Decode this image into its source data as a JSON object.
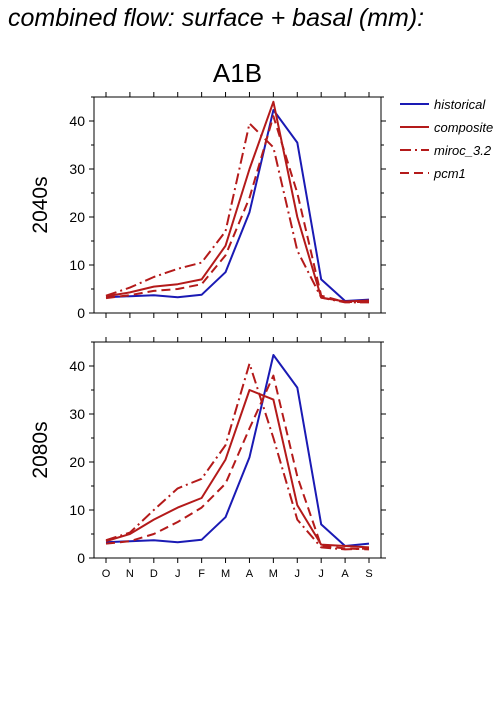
{
  "main_title": "combined flow: surface + basal (mm):",
  "chart_data": [
    {
      "type": "line",
      "title": "A1B",
      "ylabel": "2040s",
      "x": [
        "O",
        "N",
        "D",
        "J",
        "F",
        "M",
        "A",
        "M",
        "J",
        "J",
        "A",
        "S"
      ],
      "ylim": [
        0,
        45
      ],
      "yticks": [
        0,
        10,
        20,
        30,
        40
      ],
      "series": [
        {
          "name": "historical",
          "color": "#1a1ab4",
          "dash": "solid",
          "values": [
            3.3,
            3.5,
            3.7,
            3.3,
            3.8,
            8.5,
            21,
            42.3,
            35.5,
            7,
            2.5,
            2.8
          ]
        },
        {
          "name": "composite",
          "color": "#b41a1a",
          "dash": "solid",
          "values": [
            3.5,
            4.3,
            5.5,
            6,
            7,
            14,
            30,
            44,
            20,
            3.2,
            2.4,
            2.6
          ]
        },
        {
          "name": "miroc_3.2",
          "color": "#b41a1a",
          "dash": "dashdot",
          "values": [
            3.6,
            5.3,
            7.5,
            9.2,
            10.5,
            17,
            39.5,
            34.5,
            13,
            3.2,
            2.2,
            2.2
          ]
        },
        {
          "name": "pcm1",
          "color": "#b41a1a",
          "dash": "dash",
          "values": [
            3.1,
            3.7,
            4.6,
            5,
            6,
            12,
            24,
            41,
            25,
            3.6,
            2.3,
            2.3
          ]
        }
      ]
    },
    {
      "type": "line",
      "ylabel": "2080s",
      "x": [
        "O",
        "N",
        "D",
        "J",
        "F",
        "M",
        "A",
        "M",
        "J",
        "J",
        "A",
        "S"
      ],
      "ylim": [
        0,
        45
      ],
      "yticks": [
        0,
        10,
        20,
        30,
        40
      ],
      "series": [
        {
          "name": "historical",
          "color": "#1a1ab4",
          "dash": "solid",
          "values": [
            3.3,
            3.5,
            3.7,
            3.3,
            3.8,
            8.5,
            21,
            42.3,
            35.5,
            7,
            2.5,
            3
          ]
        },
        {
          "name": "composite",
          "color": "#b41a1a",
          "dash": "solid",
          "values": [
            3.5,
            5,
            8,
            10.5,
            12.5,
            20.5,
            35,
            33,
            11,
            2.8,
            2.5,
            2.2
          ]
        },
        {
          "name": "miroc_3.2",
          "color": "#b41a1a",
          "dash": "dashdot",
          "values": [
            3.7,
            5.3,
            10,
            14.5,
            16.5,
            23.5,
            40.5,
            25,
            8,
            2.2,
            1.8,
            2
          ]
        },
        {
          "name": "pcm1",
          "color": "#b41a1a",
          "dash": "dash",
          "values": [
            3,
            3.5,
            5,
            7.5,
            10.5,
            15.5,
            27,
            38,
            17,
            2.5,
            2,
            1.8
          ]
        }
      ]
    }
  ],
  "legend": {
    "placement": "top-right",
    "items": [
      {
        "label": "historical",
        "color": "#1a1ab4",
        "dash": "solid"
      },
      {
        "label": "composite",
        "color": "#b41a1a",
        "dash": "solid"
      },
      {
        "label": "miroc_3.2",
        "color": "#b41a1a",
        "dash": "dashdot"
      },
      {
        "label": "pcm1",
        "color": "#b41a1a",
        "dash": "dash"
      }
    ]
  }
}
